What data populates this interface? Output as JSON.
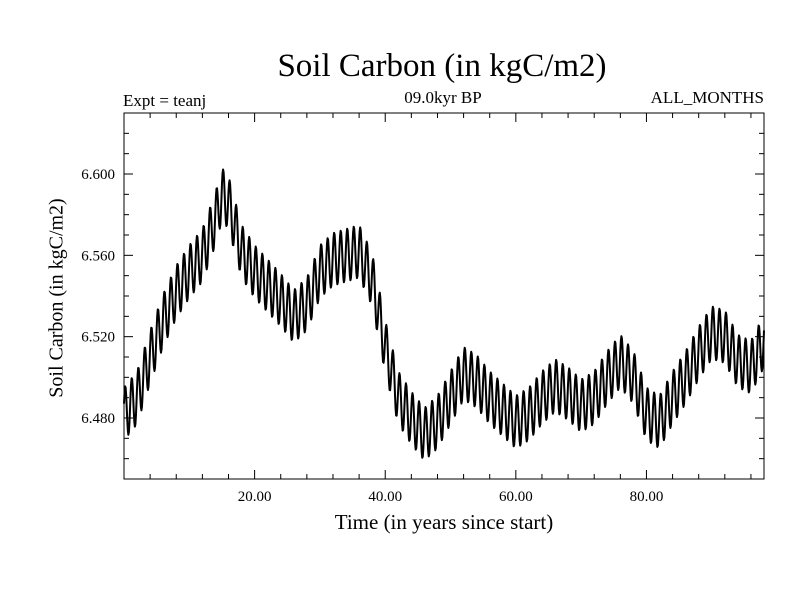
{
  "chart_data": {
    "type": "line",
    "title": "Soil Carbon (in kgC/m2)",
    "left_annotation": "Expt = teanj",
    "center_annotation": "09.0kyr BP",
    "right_annotation": "ALL_MONTHS",
    "xlabel": "Time (in years since start)",
    "ylabel": "Soil Carbon (in kgC/m2)",
    "xlim": [
      0.0,
      98.0
    ],
    "ylim": [
      6.45,
      6.63
    ],
    "x_ticks": [
      20,
      40,
      60,
      80
    ],
    "x_tick_labels": [
      "20.00",
      "40.00",
      "60.00",
      "80.00"
    ],
    "y_ticks": [
      6.48,
      6.52,
      6.56,
      6.6
    ],
    "y_tick_labels": [
      "6.480",
      "6.520",
      "6.560",
      "6.600"
    ],
    "seasonal_amplitude": 0.013,
    "seasonal_period_years": 1.0,
    "series": [
      {
        "name": "Soil Carbon",
        "color": "#000000",
        "annual_x": [
          0,
          2,
          4,
          6,
          8,
          10,
          12,
          14,
          15,
          16,
          18,
          20,
          22,
          24,
          26,
          28,
          30,
          32,
          34,
          36,
          38,
          40,
          42,
          44,
          46,
          48,
          50,
          52,
          54,
          56,
          58,
          60,
          62,
          64,
          66,
          68,
          70,
          72,
          74,
          76,
          78,
          80,
          82,
          84,
          86,
          88,
          90,
          92,
          94,
          96,
          98
        ],
        "annual_mean": [
          6.482,
          6.49,
          6.51,
          6.528,
          6.542,
          6.552,
          6.56,
          6.578,
          6.59,
          6.586,
          6.562,
          6.552,
          6.545,
          6.538,
          6.53,
          6.536,
          6.552,
          6.558,
          6.56,
          6.562,
          6.548,
          6.515,
          6.49,
          6.48,
          6.472,
          6.478,
          6.49,
          6.502,
          6.498,
          6.49,
          6.484,
          6.478,
          6.482,
          6.49,
          6.496,
          6.492,
          6.486,
          6.49,
          6.5,
          6.508,
          6.5,
          6.482,
          6.478,
          6.49,
          6.5,
          6.512,
          6.522,
          6.52,
          6.508,
          6.505,
          6.518
        ]
      }
    ]
  }
}
